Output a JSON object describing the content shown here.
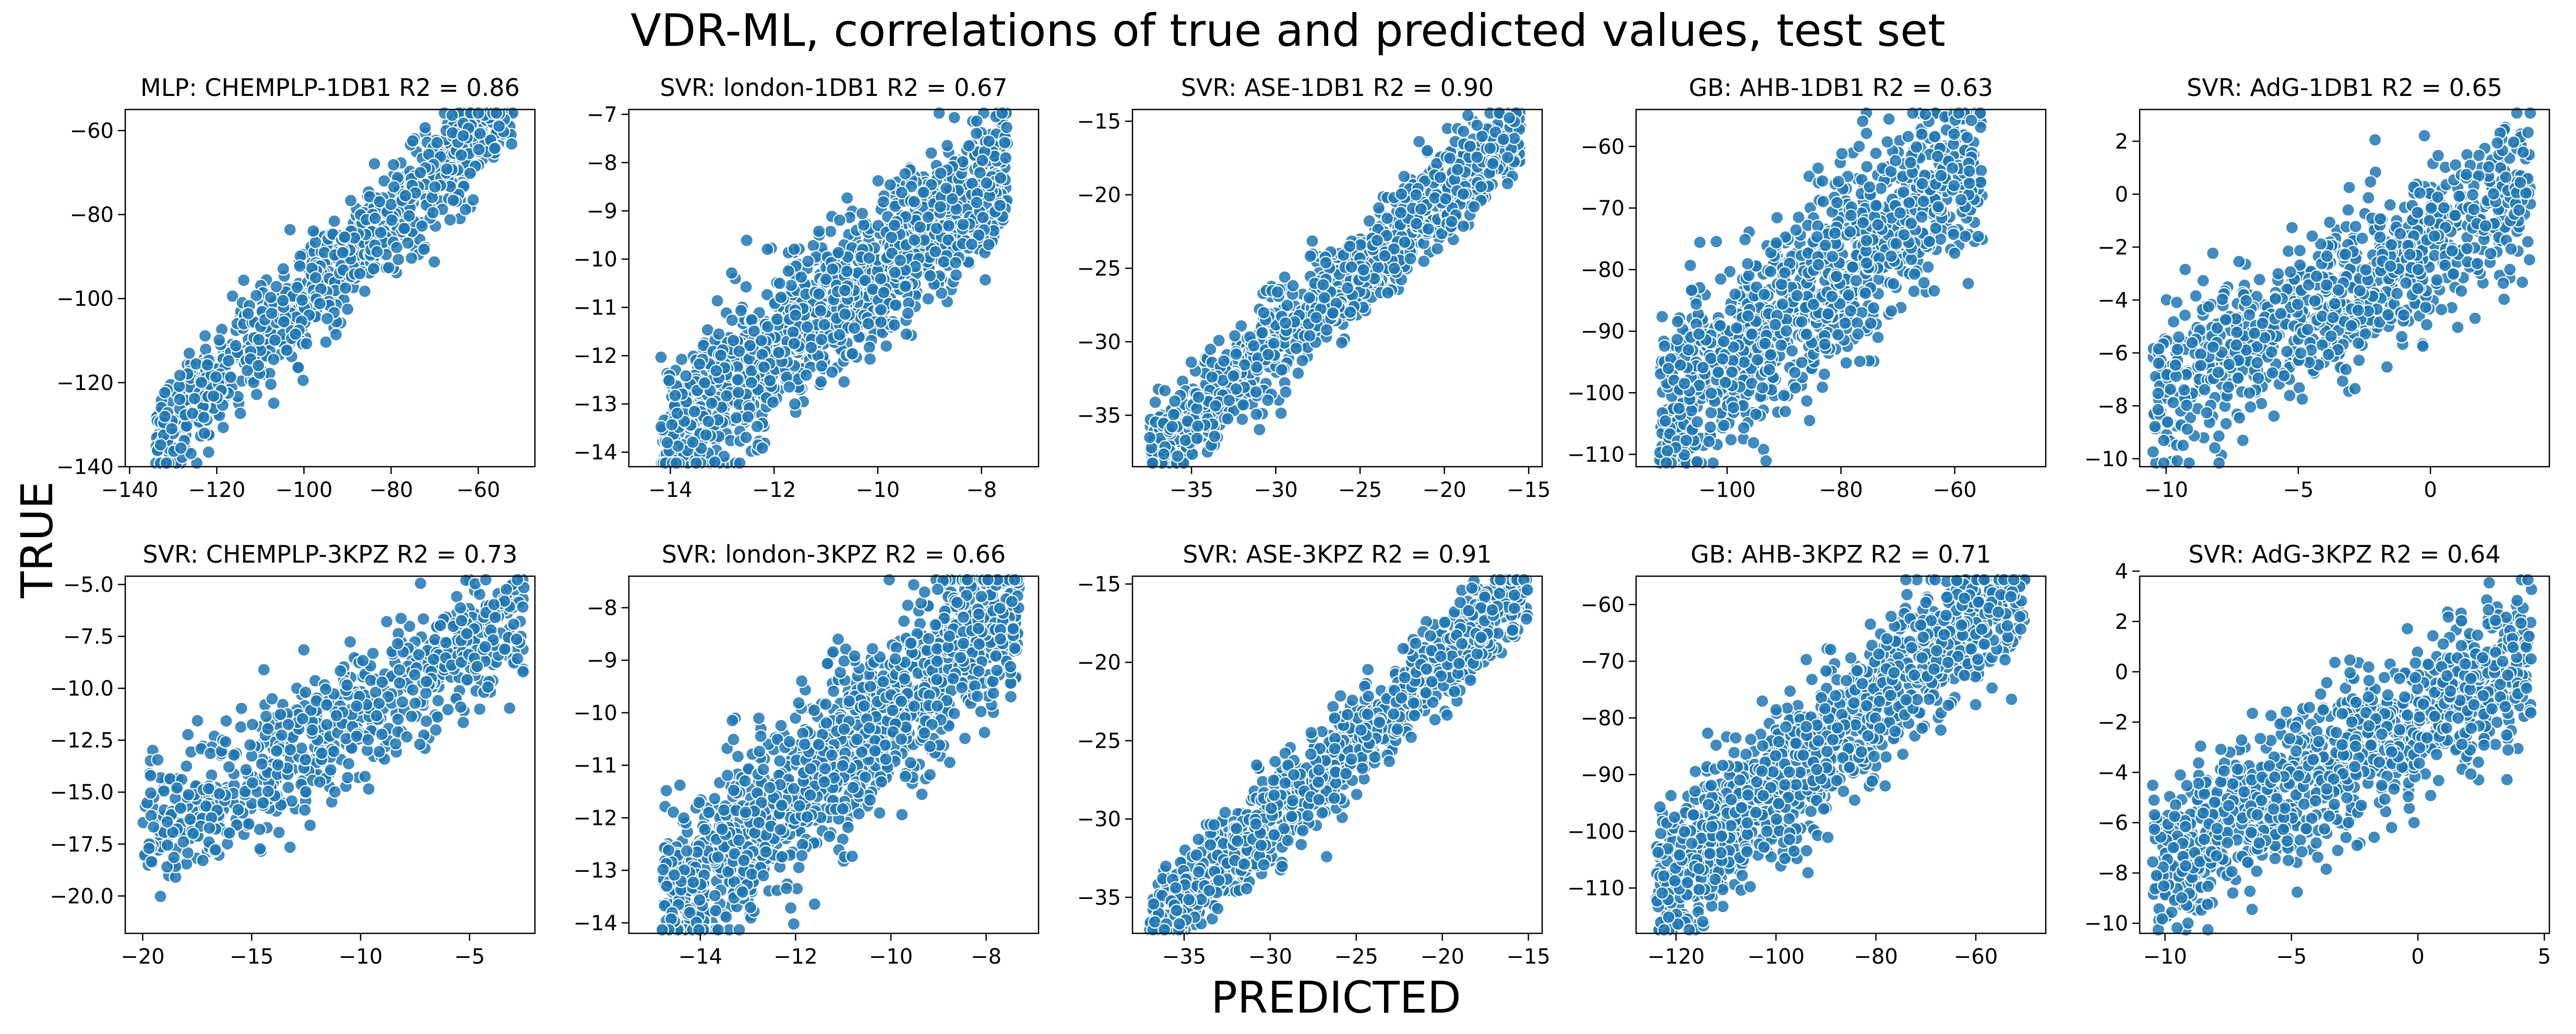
{
  "figure": {
    "title": "VDR-ML, correlations of true and predicted values, test set",
    "xlabel": "PREDICTED",
    "ylabel": "TRUE"
  },
  "style": {
    "point_color": "#1f77b4",
    "point_edge": "#ffffff",
    "point_opacity": 0.85
  },
  "chart_data": [
    {
      "type": "scatter",
      "title": "MLP: CHEMPLP-1DB1 R2 = 0.86",
      "r2": 0.86,
      "n_points": 950,
      "xlim": [
        -141,
        -47
      ],
      "ylim": [
        -140,
        -55
      ],
      "xticks": [
        -140,
        -120,
        -100,
        -80,
        -60
      ],
      "yticks": [
        -140,
        -120,
        -100,
        -80,
        -60
      ],
      "xrange": [
        -134,
        -52
      ],
      "trend": [
        1.0,
        0.0
      ],
      "noise": 6.5,
      "grid": false,
      "legend": "none"
    },
    {
      "type": "scatter",
      "title": "SVR: london-1DB1 R2 = 0.67",
      "r2": 0.67,
      "n_points": 1400,
      "xlim": [
        -14.8,
        -6.9
      ],
      "ylim": [
        -14.3,
        -6.9
      ],
      "xticks": [
        -14,
        -12,
        -10,
        -8
      ],
      "yticks": [
        -14,
        -13,
        -12,
        -11,
        -10,
        -9,
        -8,
        -7
      ],
      "xrange": [
        -14.2,
        -7.5
      ],
      "trend": [
        0.85,
        -1.7
      ],
      "noise": 0.75,
      "grid": false,
      "legend": "none"
    },
    {
      "type": "scatter",
      "title": "SVR: ASE-1DB1 R2 = 0.90",
      "r2": 0.9,
      "n_points": 1100,
      "xlim": [
        -38.5,
        -14.2
      ],
      "ylim": [
        -38.5,
        -14.2
      ],
      "xticks": [
        -35,
        -30,
        -25,
        -20,
        -15
      ],
      "yticks": [
        -35,
        -30,
        -25,
        -20,
        -15
      ],
      "xrange": [
        -37.5,
        -15.5
      ],
      "trend": [
        1.0,
        0.0
      ],
      "noise": 1.6,
      "grid": false,
      "legend": "none"
    },
    {
      "type": "scatter",
      "title": "GB: AHB-1DB1 R2 = 0.63",
      "r2": 0.63,
      "n_points": 1100,
      "xlim": [
        -116,
        -44
      ],
      "ylim": [
        -112,
        -54
      ],
      "xticks": [
        -100,
        -80,
        -60
      ],
      "yticks": [
        -110,
        -100,
        -90,
        -80,
        -70,
        -60
      ],
      "xrange": [
        -112,
        -55
      ],
      "trend": [
        0.75,
        -20
      ],
      "noise": 7.5,
      "grid": false,
      "legend": "none"
    },
    {
      "type": "scatter",
      "title": "SVR: AdG-1DB1 R2 = 0.65",
      "r2": 0.65,
      "n_points": 900,
      "xlim": [
        -11,
        4.5
      ],
      "ylim": [
        -10.3,
        3.2
      ],
      "xticks": [
        -10,
        -5,
        0
      ],
      "yticks": [
        -10,
        -8,
        -6,
        -4,
        -2,
        0,
        2
      ],
      "xrange": [
        -10.5,
        3.8
      ],
      "trend": [
        0.55,
        -1.9
      ],
      "noise": 1.5,
      "grid": false,
      "legend": "none"
    },
    {
      "type": "scatter",
      "title": "SVR: CHEMPLP-3KPZ R2 = 0.73",
      "r2": 0.73,
      "n_points": 750,
      "xlim": [
        -20.8,
        -2
      ],
      "ylim": [
        -21.8,
        -4.6
      ],
      "xticks": [
        -20,
        -15,
        -10,
        -5
      ],
      "yticks": [
        -20.0,
        -17.5,
        -15.0,
        -12.5,
        -10.0,
        -7.5,
        -5.0
      ],
      "xrange": [
        -20,
        -2.5
      ],
      "trend": [
        0.62,
        -5.0
      ],
      "noise": 1.6,
      "grid": false,
      "legend": "none"
    },
    {
      "type": "scatter",
      "title": "SVR: london-3KPZ R2 = 0.66",
      "r2": 0.66,
      "n_points": 1400,
      "xlim": [
        -15.5,
        -6.9
      ],
      "ylim": [
        -14.2,
        -7.4
      ],
      "xticks": [
        -14,
        -12,
        -10,
        -8
      ],
      "yticks": [
        -14,
        -13,
        -12,
        -11,
        -10,
        -9,
        -8
      ],
      "xrange": [
        -14.8,
        -7.3
      ],
      "trend": [
        0.78,
        -2.2
      ],
      "noise": 0.8,
      "grid": false,
      "legend": "none"
    },
    {
      "type": "scatter",
      "title": "SVR: ASE-3KPZ R2 = 0.91",
      "r2": 0.91,
      "n_points": 1100,
      "xlim": [
        -38,
        -14.2
      ],
      "ylim": [
        -37.3,
        -14.5
      ],
      "xticks": [
        -35,
        -30,
        -25,
        -20,
        -15
      ],
      "yticks": [
        -35,
        -30,
        -25,
        -20,
        -15
      ],
      "xrange": [
        -37,
        -15
      ],
      "trend": [
        1.0,
        0.0
      ],
      "noise": 1.5,
      "grid": false,
      "legend": "none"
    },
    {
      "type": "scatter",
      "title": "GB: AHB-3KPZ R2 = 0.71",
      "r2": 0.71,
      "n_points": 1300,
      "xlim": [
        -128,
        -46
      ],
      "ylim": [
        -118,
        -55
      ],
      "xticks": [
        -120,
        -100,
        -80,
        -60
      ],
      "yticks": [
        -110,
        -100,
        -90,
        -80,
        -70,
        -60
      ],
      "xrange": [
        -124,
        -50
      ],
      "trend": [
        0.75,
        -17
      ],
      "noise": 6.5,
      "grid": false,
      "legend": "none"
    },
    {
      "type": "scatter",
      "title": "SVR: AdG-3KPZ R2 = 0.64",
      "r2": 0.64,
      "n_points": 1100,
      "xlim": [
        -11,
        5.2
      ],
      "ylim": [
        -10.4,
        3.8
      ],
      "xticks": [
        -10,
        -5,
        0,
        5
      ],
      "yticks": [
        -10,
        -8,
        -6,
        -4,
        -2,
        0,
        2,
        4
      ],
      "xrange": [
        -10.5,
        4.5
      ],
      "trend": [
        0.55,
        -2.0
      ],
      "noise": 1.5,
      "grid": false,
      "legend": "none"
    }
  ]
}
